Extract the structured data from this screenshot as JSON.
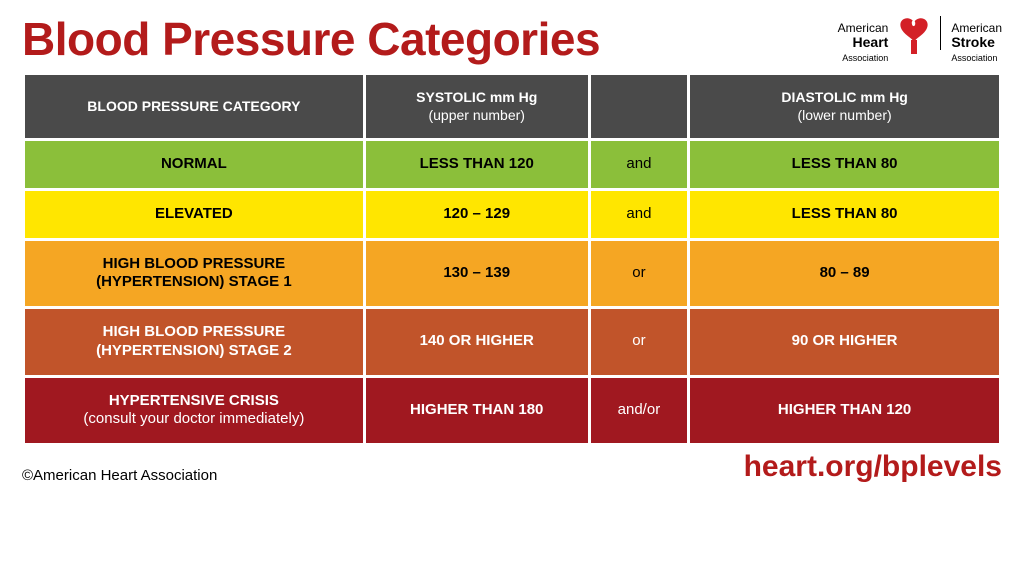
{
  "title": {
    "text": "Blood Pressure Categories",
    "color": "#b31b1b"
  },
  "logo": {
    "heart_color": "#d32027",
    "org1_line1": "American",
    "org1_line2": "Heart",
    "org1_line3": "Association",
    "org2_line1": "American",
    "org2_line2": "Stroke",
    "org2_line3": "Association"
  },
  "table": {
    "border_spacing": 3,
    "header_bg": "#4a4a4a",
    "header_fg": "#ffffff",
    "columns": [
      {
        "label": "BLOOD PRESSURE CATEGORY",
        "sublabel": ""
      },
      {
        "label": "SYSTOLIC mm Hg",
        "sublabel": "(upper number)"
      },
      {
        "label": "",
        "sublabel": ""
      },
      {
        "label": "DIASTOLIC mm Hg",
        "sublabel": "(lower number)"
      }
    ],
    "rows": [
      {
        "category": "NORMAL",
        "category_sub": "",
        "systolic": "LESS THAN 120",
        "conj": "and",
        "diastolic": "LESS THAN 80",
        "bg": "#8bbf3a",
        "fg": "#000000"
      },
      {
        "category": "ELEVATED",
        "category_sub": "",
        "systolic": "120 – 129",
        "conj": "and",
        "diastolic": "LESS THAN 80",
        "bg": "#ffe600",
        "fg": "#000000"
      },
      {
        "category": "HIGH BLOOD PRESSURE",
        "category_sub": "(HYPERTENSION) STAGE 1",
        "systolic": "130 – 139",
        "conj": "or",
        "diastolic": "80 – 89",
        "bg": "#f5a623",
        "fg": "#000000"
      },
      {
        "category": "HIGH BLOOD PRESSURE",
        "category_sub": "(HYPERTENSION) STAGE 2",
        "systolic": "140 OR HIGHER",
        "conj": "or",
        "diastolic": "90 OR HIGHER",
        "bg": "#c1542a",
        "fg": "#ffffff"
      },
      {
        "category": "HYPERTENSIVE CRISIS",
        "category_sub": "(consult your doctor immediately)",
        "systolic": "HIGHER THAN 180",
        "conj": "and/or",
        "diastolic": "HIGHER THAN 120",
        "bg": "#a01820",
        "fg": "#ffffff"
      }
    ]
  },
  "footer": {
    "copyright": "©American Heart Association",
    "url": "heart.org/bplevels",
    "url_color": "#b31b1b"
  }
}
